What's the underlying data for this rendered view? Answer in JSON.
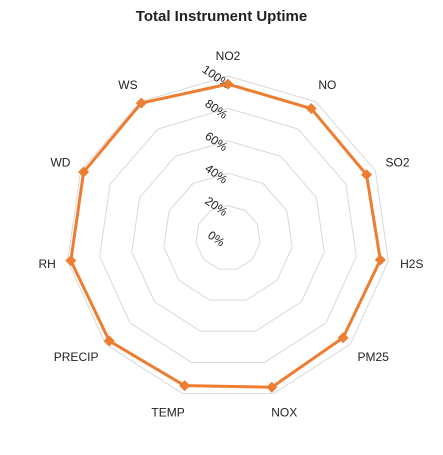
{
  "chart_data": {
    "type": "radar",
    "title": "Total Instrument Uptime",
    "categories": [
      "NO2",
      "NO",
      "SO2",
      "H2S",
      "PM25",
      "NOX",
      "TEMP",
      "PRECIP",
      "RH",
      "WD",
      "WS"
    ],
    "series": [
      {
        "values": [
          95,
          95,
          94,
          95,
          94,
          96,
          95,
          97,
          98,
          98,
          99
        ]
      }
    ],
    "rlim": [
      0,
      100
    ],
    "ticks": [
      "0%",
      "20%",
      "40%",
      "60%",
      "80%",
      "100%"
    ],
    "tick_values": [
      0,
      20,
      40,
      60,
      80,
      100
    ],
    "grid": true,
    "legend": "none",
    "colors": {
      "series": "#ED7D31",
      "grid": "#D9D9D9"
    }
  }
}
